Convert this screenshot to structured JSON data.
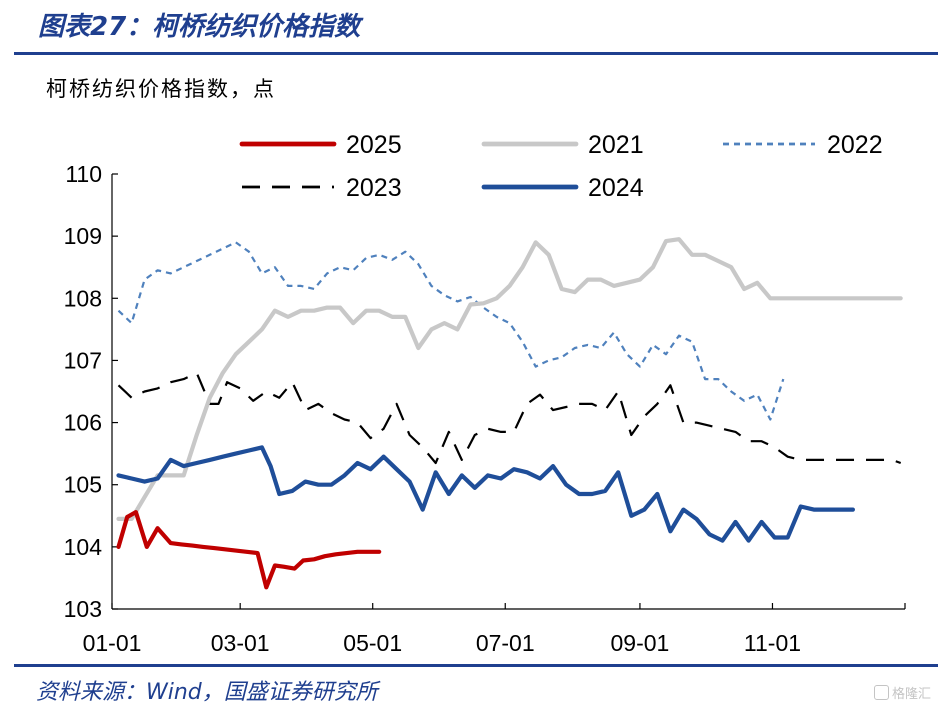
{
  "figure": {
    "title": "图表27：柯桥纺织价格指数",
    "source": "资料来源：Wind，国盛证券研究所",
    "watermark": "格隆汇"
  },
  "chart_data": {
    "type": "line",
    "ylabel": "柯桥纺织价格指数，点",
    "ylim": [
      103,
      110
    ],
    "yticks": [
      "103",
      "104",
      "105",
      "106",
      "107",
      "108",
      "109",
      "110"
    ],
    "xticks": [
      "01-01",
      "03-01",
      "05-01",
      "07-01",
      "09-01",
      "11-01"
    ],
    "x_unit": "day of year",
    "xlim": [
      1,
      366
    ],
    "xtick_days": [
      1,
      60,
      121,
      182,
      244,
      305
    ],
    "legend_position": "top",
    "grid": false,
    "series": [
      {
        "name": "2025",
        "color": "#c00000",
        "dash": "solid",
        "width": 4.2,
        "x": [
          4,
          8,
          12,
          17,
          22,
          28,
          33,
          38,
          43,
          48,
          53,
          58,
          63,
          68,
          72,
          76,
          80,
          85,
          89,
          94,
          99,
          104,
          109,
          114,
          119,
          124
        ],
        "y": [
          104.0,
          104.48,
          104.56,
          104.0,
          104.3,
          104.06,
          104.04,
          104.02,
          104.0,
          103.98,
          103.96,
          103.94,
          103.92,
          103.9,
          103.35,
          103.7,
          103.68,
          103.65,
          103.78,
          103.8,
          103.85,
          103.88,
          103.9,
          103.92,
          103.92,
          103.92
        ]
      },
      {
        "name": "2021",
        "color": "#c8c8c8",
        "dash": "solid",
        "width": 4.2,
        "x": [
          4,
          10,
          16,
          22,
          28,
          34,
          40,
          46,
          52,
          58,
          64,
          70,
          76,
          82,
          88,
          94,
          100,
          106,
          112,
          118,
          124,
          130,
          136,
          142,
          148,
          154,
          160,
          166,
          172,
          178,
          184,
          190,
          196,
          202,
          208,
          214,
          220,
          226,
          232,
          238,
          244,
          250,
          256,
          262,
          268,
          274,
          280,
          286,
          292,
          298,
          304,
          310,
          316,
          322,
          328,
          334,
          340,
          346,
          352,
          358,
          364
        ],
        "y": [
          104.45,
          104.45,
          104.8,
          105.15,
          105.15,
          105.15,
          105.8,
          106.4,
          106.8,
          107.1,
          107.3,
          107.5,
          107.8,
          107.7,
          107.8,
          107.8,
          107.85,
          107.85,
          107.6,
          107.8,
          107.8,
          107.7,
          107.7,
          107.2,
          107.5,
          107.6,
          107.5,
          107.9,
          107.92,
          108.0,
          108.2,
          108.5,
          108.9,
          108.7,
          108.15,
          108.1,
          108.3,
          108.3,
          108.2,
          108.25,
          108.3,
          108.5,
          108.92,
          108.95,
          108.7,
          108.7,
          108.6,
          108.5,
          108.15,
          108.25,
          108.0,
          108.0,
          108.0,
          108.0,
          108.0,
          108.0,
          108.0,
          108.0,
          108.0,
          108.0,
          108.0
        ],
        "x_trim": 60
      },
      {
        "name": "2022",
        "color": "#4f81bd",
        "dash": "dashed",
        "width": 2.2,
        "x": [
          4,
          10,
          16,
          22,
          28,
          34,
          40,
          46,
          52,
          58,
          64,
          70,
          76,
          82,
          88,
          94,
          100,
          106,
          112,
          118,
          124,
          130,
          136,
          142,
          148,
          154,
          160,
          166,
          172,
          178,
          184,
          190,
          196,
          202,
          208,
          214,
          220,
          226,
          232,
          238,
          244,
          250,
          256,
          262,
          268,
          274,
          280,
          286,
          292,
          298,
          304,
          310,
          316,
          322,
          328,
          334,
          340,
          346,
          352,
          358,
          364
        ],
        "y": [
          107.8,
          107.6,
          108.3,
          108.45,
          108.4,
          108.5,
          108.6,
          108.7,
          108.8,
          108.9,
          108.75,
          108.4,
          108.5,
          108.2,
          108.2,
          108.15,
          108.4,
          108.5,
          108.45,
          108.65,
          108.7,
          108.62,
          108.75,
          108.55,
          108.2,
          108.05,
          107.95,
          108.02,
          107.85,
          107.7,
          107.6,
          107.3,
          106.9,
          107.0,
          107.05,
          107.2,
          107.25,
          107.2,
          107.45,
          107.1,
          106.9,
          107.25,
          107.1,
          107.4,
          107.3,
          106.7,
          106.7,
          106.5,
          106.35,
          106.45,
          106.05,
          106.7,
          106.7,
          106.7,
          106.7,
          106.7,
          106.7,
          106.7,
          106.7,
          106.7,
          106.7
        ],
        "x_trim": 51
      },
      {
        "name": "2023",
        "color": "#000000",
        "dash": "longdash",
        "width": 2.2,
        "x": [
          4,
          10,
          16,
          22,
          28,
          34,
          40,
          46,
          50,
          54,
          60,
          66,
          72,
          78,
          84,
          90,
          96,
          102,
          108,
          114,
          120,
          126,
          132,
          138,
          144,
          150,
          156,
          162,
          168,
          174,
          180,
          186,
          192,
          198,
          204,
          210,
          216,
          222,
          228,
          234,
          240,
          246,
          252,
          258,
          264,
          270,
          276,
          282,
          288,
          294,
          300,
          306,
          312,
          318,
          324,
          330,
          336,
          342,
          348,
          354,
          360,
          364
        ],
        "y": [
          106.6,
          106.4,
          106.5,
          106.55,
          106.65,
          106.7,
          106.8,
          106.3,
          106.3,
          106.65,
          106.55,
          106.35,
          106.5,
          106.4,
          106.65,
          106.2,
          106.3,
          106.15,
          106.05,
          106.0,
          105.75,
          105.9,
          106.3,
          105.8,
          105.6,
          105.35,
          105.85,
          105.4,
          105.8,
          105.9,
          105.85,
          105.85,
          106.3,
          106.45,
          106.2,
          106.25,
          106.3,
          106.3,
          106.2,
          106.5,
          105.8,
          106.1,
          106.3,
          106.6,
          106.0,
          106.0,
          105.95,
          105.9,
          105.85,
          105.7,
          105.7,
          105.6,
          105.45,
          105.4,
          105.4,
          105.4,
          105.4,
          105.4,
          105.4,
          105.4,
          105.4,
          105.35
        ]
      },
      {
        "name": "2024",
        "color": "#1f4e99",
        "dash": "solid",
        "width": 4.2,
        "x": [
          4,
          10,
          16,
          22,
          28,
          34,
          40,
          46,
          52,
          58,
          64,
          70,
          74,
          78,
          84,
          90,
          96,
          102,
          108,
          114,
          120,
          126,
          132,
          138,
          144,
          150,
          156,
          162,
          168,
          174,
          180,
          186,
          192,
          198,
          204,
          210,
          216,
          222,
          228,
          234,
          240,
          246,
          252,
          258,
          264,
          270,
          276,
          282,
          288,
          294,
          300,
          306,
          312,
          318,
          324,
          330,
          336,
          342,
          348,
          354,
          358,
          364
        ],
        "y": [
          105.15,
          105.1,
          105.05,
          105.1,
          105.4,
          105.3,
          105.35,
          105.4,
          105.45,
          105.5,
          105.55,
          105.6,
          105.3,
          104.85,
          104.9,
          105.05,
          105.0,
          105.0,
          105.15,
          105.35,
          105.25,
          105.45,
          105.25,
          105.05,
          104.6,
          105.2,
          104.85,
          105.15,
          104.95,
          105.15,
          105.1,
          105.25,
          105.2,
          105.1,
          105.3,
          105.0,
          104.85,
          104.85,
          104.9,
          105.2,
          104.5,
          104.6,
          104.85,
          104.25,
          104.6,
          104.45,
          104.2,
          104.1,
          104.4,
          104.1,
          104.4,
          104.15,
          104.15,
          104.65,
          104.6,
          104.6,
          104.6,
          104.6,
          104.6,
          104.6,
          104.6,
          104.62
        ],
        "x_trim": 57
      }
    ]
  }
}
